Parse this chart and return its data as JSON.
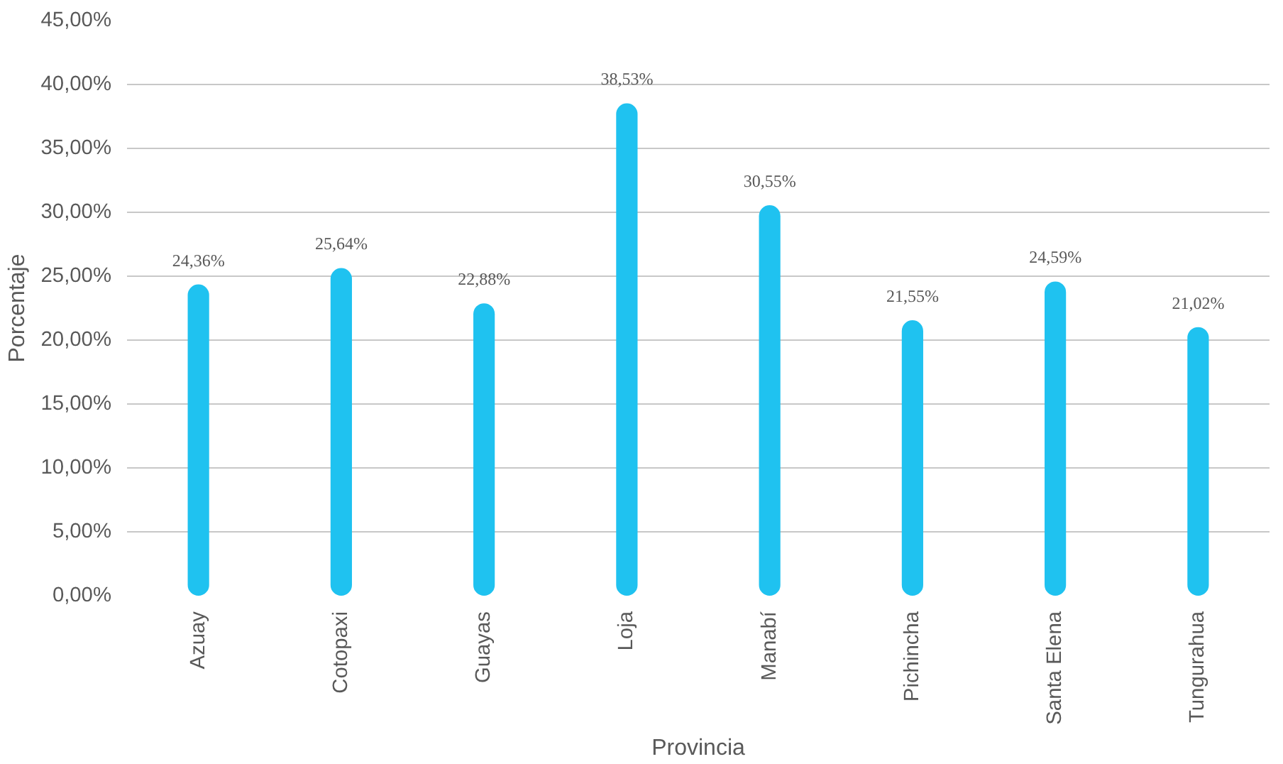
{
  "chart_data": {
    "type": "bar",
    "xlabel": "Provincia",
    "ylabel": "Porcentaje",
    "categories": [
      "Azuay",
      "Cotopaxi",
      "Guayas",
      "Loja",
      "Manabí",
      "Pichincha",
      "Santa Elena",
      "Tungurahua"
    ],
    "values": [
      24.36,
      25.64,
      22.88,
      38.53,
      30.55,
      21.55,
      24.59,
      21.02
    ],
    "value_labels": [
      "24,36%",
      "25,64%",
      "22,88%",
      "38,53%",
      "30,55%",
      "21,55%",
      "24,59%",
      "21,02%"
    ],
    "color": "#1fc2f0",
    "ylim": [
      0,
      45
    ],
    "yticks": [
      {
        "value": 0,
        "label": "0,00%"
      },
      {
        "value": 5,
        "label": "5,00%"
      },
      {
        "value": 10,
        "label": "10,00%"
      },
      {
        "value": 15,
        "label": "15,00%"
      },
      {
        "value": 20,
        "label": "20,00%"
      },
      {
        "value": 25,
        "label": "25,00%"
      },
      {
        "value": 30,
        "label": "30,00%"
      },
      {
        "value": 35,
        "label": "35,00%"
      },
      {
        "value": 40,
        "label": "40,00%"
      },
      {
        "value": 45,
        "label": "45,00%"
      }
    ],
    "grid": "y"
  }
}
